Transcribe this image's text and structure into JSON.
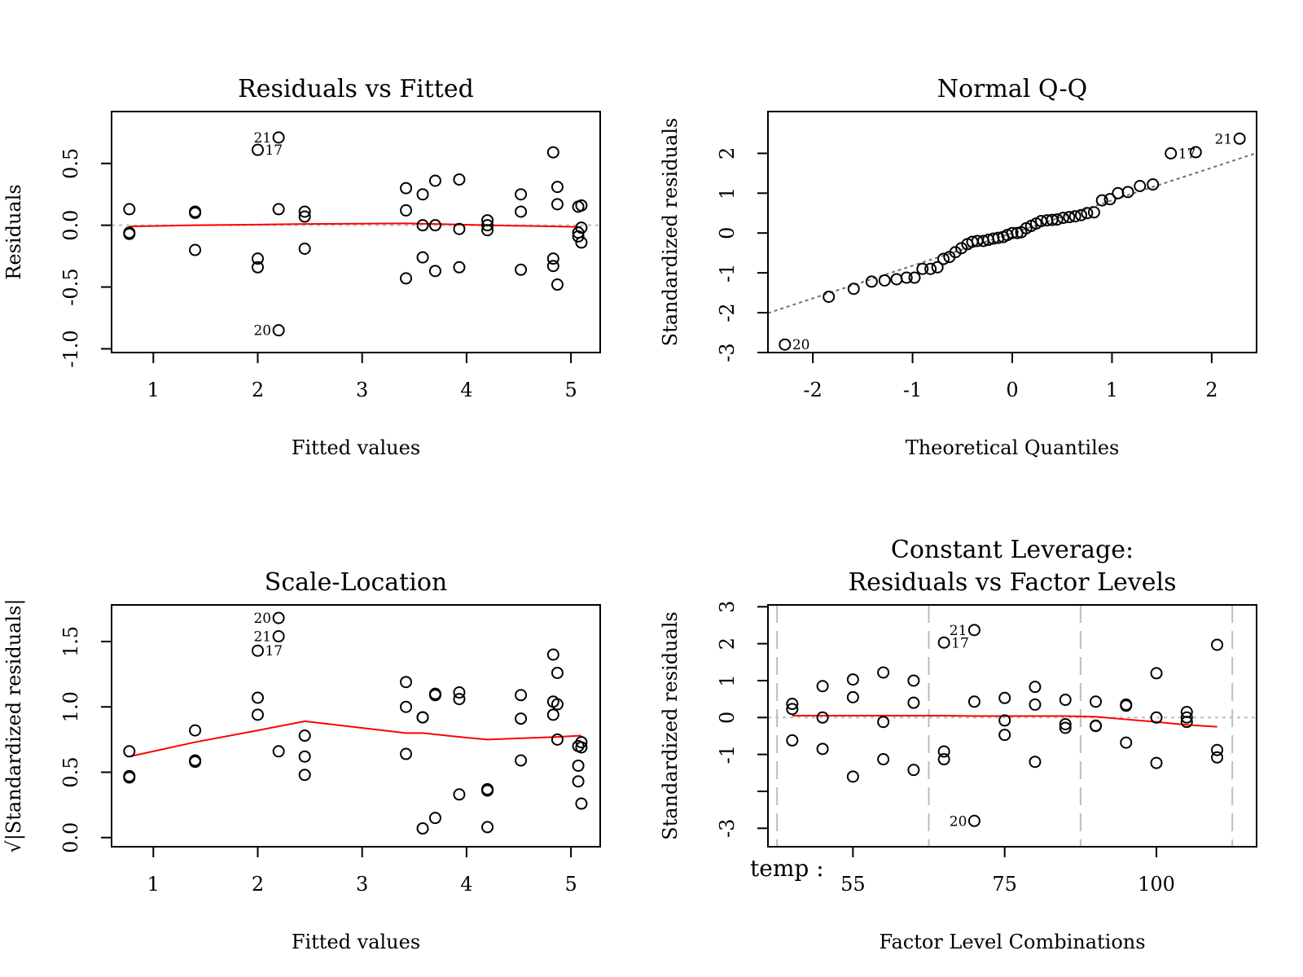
{
  "chart_data": [
    {
      "type": "scatter",
      "title": "Residuals vs Fitted",
      "xlabel": "Fitted values",
      "ylabel": "Residuals",
      "xlim": [
        0.6,
        5.28
      ],
      "ylim": [
        -1.03,
        0.92
      ],
      "xticks": [
        1,
        2,
        3,
        4,
        5
      ],
      "xtick_labels": [
        "1",
        "2",
        "3",
        "4",
        "5"
      ],
      "yticks": [
        -1.0,
        -0.5,
        0.0,
        0.5
      ],
      "ytick_labels": [
        "-1.0",
        "-0.5",
        "0.0",
        "0.5"
      ],
      "hline": 0,
      "points": {
        "x": [
          0.77,
          0.77,
          0.77,
          1.4,
          1.4,
          1.4,
          2.0,
          2.0,
          2.0,
          2.2,
          2.2,
          2.2,
          2.45,
          2.45,
          2.45,
          3.42,
          3.42,
          3.42,
          3.58,
          3.58,
          3.58,
          3.7,
          3.7,
          3.7,
          3.93,
          3.93,
          3.93,
          4.2,
          4.2,
          4.2,
          4.52,
          4.52,
          4.52,
          4.83,
          4.83,
          4.83,
          4.87,
          4.87,
          4.87,
          5.07,
          5.07,
          5.07,
          5.1,
          5.1,
          5.1
        ],
        "y": [
          0.13,
          -0.06,
          -0.07,
          0.1,
          0.11,
          -0.2,
          0.61,
          -0.27,
          -0.34,
          0.71,
          0.13,
          -0.85,
          0.11,
          0.07,
          -0.19,
          0.3,
          0.12,
          -0.43,
          0.25,
          0.0,
          -0.26,
          0.36,
          0.0,
          -0.37,
          0.37,
          -0.03,
          -0.34,
          0.04,
          0.0,
          -0.04,
          0.25,
          0.11,
          -0.36,
          0.59,
          -0.27,
          -0.33,
          0.31,
          0.17,
          -0.48,
          0.15,
          -0.06,
          -0.09,
          0.16,
          -0.02,
          -0.14
        ]
      },
      "smooth": {
        "x": [
          0.77,
          1.4,
          2.0,
          2.45,
          3.42,
          3.7,
          4.2,
          4.87,
          5.1
        ],
        "y": [
          -0.01,
          0.0,
          0.005,
          0.01,
          0.015,
          0.01,
          0.0,
          -0.01,
          -0.015
        ]
      },
      "labeled_points": [
        {
          "label": "21",
          "x": 2.2,
          "y": 0.71,
          "side": "left"
        },
        {
          "label": "17",
          "x": 2.0,
          "y": 0.61,
          "side": "right"
        },
        {
          "label": "20",
          "x": 2.2,
          "y": -0.85,
          "side": "left"
        }
      ]
    },
    {
      "type": "scatter",
      "title": "Normal Q-Q",
      "xlabel": "Theoretical Quantiles",
      "ylabel": "Standardized residuals",
      "xlim": [
        -2.45,
        2.45
      ],
      "ylim": [
        -3.0,
        3.05
      ],
      "xticks": [
        -2,
        -1,
        0,
        1,
        2
      ],
      "xtick_labels": [
        "-2",
        "-1",
        "0",
        "1",
        "2"
      ],
      "yticks": [
        -3,
        -2,
        -1,
        0,
        1,
        2
      ],
      "ytick_labels": [
        "-3",
        "-2",
        "-1",
        "0",
        "1",
        "2"
      ],
      "points": {
        "x": [
          -2.28,
          -1.84,
          -1.59,
          -1.41,
          -1.28,
          -1.16,
          -1.06,
          -0.98,
          -0.9,
          -0.82,
          -0.75,
          -0.69,
          -0.63,
          -0.57,
          -0.51,
          -0.45,
          -0.4,
          -0.35,
          -0.29,
          -0.24,
          -0.19,
          -0.14,
          -0.09,
          -0.05,
          0.0,
          0.05,
          0.09,
          0.14,
          0.19,
          0.24,
          0.29,
          0.35,
          0.4,
          0.45,
          0.51,
          0.57,
          0.63,
          0.69,
          0.75,
          0.82,
          0.9,
          0.98,
          1.06,
          1.16,
          1.28,
          1.41,
          1.59,
          1.84,
          2.28
        ],
        "y": [
          -2.8,
          -1.6,
          -1.4,
          -1.22,
          -1.19,
          -1.16,
          -1.12,
          -1.12,
          -0.9,
          -0.9,
          -0.86,
          -0.65,
          -0.6,
          -0.48,
          -0.38,
          -0.28,
          -0.22,
          -0.2,
          -0.2,
          -0.17,
          -0.14,
          -0.12,
          -0.1,
          -0.05,
          0.0,
          0.0,
          0.02,
          0.12,
          0.18,
          0.24,
          0.3,
          0.32,
          0.33,
          0.34,
          0.38,
          0.4,
          0.42,
          0.45,
          0.5,
          0.52,
          0.82,
          0.85,
          1.0,
          1.03,
          1.18,
          1.22,
          2.0,
          2.03,
          2.37
        ]
      },
      "reference_line": {
        "intercept": 0.0,
        "slope": 0.82
      },
      "labeled_points": [
        {
          "label": "21",
          "x": 2.28,
          "y": 2.37,
          "side": "left"
        },
        {
          "label": "17",
          "x": 1.59,
          "y": 2.0,
          "side": "right"
        },
        {
          "label": "20",
          "x": -2.28,
          "y": -2.8,
          "side": "right"
        }
      ]
    },
    {
      "type": "scatter",
      "title": "Scale-Location",
      "xlabel": "Fitted values",
      "ylabel": "√|Standardized residuals|",
      "xlim": [
        0.6,
        5.28
      ],
      "ylim": [
        -0.07,
        1.78
      ],
      "xticks": [
        1,
        2,
        3,
        4,
        5
      ],
      "xtick_labels": [
        "1",
        "2",
        "3",
        "4",
        "5"
      ],
      "yticks": [
        0.0,
        0.5,
        1.0,
        1.5
      ],
      "ytick_labels": [
        "0.0",
        "0.5",
        "1.0",
        "1.5"
      ],
      "points": {
        "x": [
          0.77,
          0.77,
          0.77,
          1.4,
          1.4,
          1.4,
          2.0,
          2.0,
          2.0,
          2.2,
          2.2,
          2.2,
          2.45,
          2.45,
          2.45,
          3.42,
          3.42,
          3.42,
          3.58,
          3.58,
          3.58,
          3.7,
          3.7,
          3.7,
          3.93,
          3.93,
          3.93,
          4.2,
          4.2,
          4.2,
          4.52,
          4.52,
          4.52,
          4.83,
          4.83,
          4.83,
          4.87,
          4.87,
          4.87,
          5.07,
          5.07,
          5.07,
          5.1,
          5.1,
          5.1
        ],
        "y": [
          0.66,
          0.46,
          0.47,
          0.59,
          0.58,
          0.82,
          1.43,
          1.07,
          0.94,
          1.54,
          0.66,
          1.68,
          0.62,
          0.48,
          0.78,
          1.19,
          1.0,
          0.64,
          0.92,
          0.92,
          0.07,
          1.1,
          1.09,
          0.15,
          1.11,
          1.06,
          0.33,
          0.37,
          0.36,
          0.08,
          1.09,
          0.91,
          0.59,
          1.4,
          1.04,
          0.94,
          1.26,
          1.02,
          0.75,
          0.7,
          0.55,
          0.43,
          0.73,
          0.69,
          0.26
        ]
      },
      "smooth": {
        "x": [
          0.77,
          1.4,
          2.0,
          2.45,
          3.42,
          3.58,
          3.93,
          4.2,
          4.52,
          4.87,
          5.1
        ],
        "y": [
          0.62,
          0.73,
          0.82,
          0.89,
          0.8,
          0.8,
          0.77,
          0.75,
          0.76,
          0.77,
          0.78
        ]
      },
      "labeled_points": [
        {
          "label": "20",
          "x": 2.2,
          "y": 1.68,
          "side": "left"
        },
        {
          "label": "21",
          "x": 2.2,
          "y": 1.54,
          "side": "left"
        },
        {
          "label": "17",
          "x": 2.0,
          "y": 1.43,
          "side": "right"
        }
      ]
    },
    {
      "type": "scatter",
      "title": "Constant Leverage:",
      "title_line2": "Residuals vs Factor Levels",
      "xlabel": "Factor Level Combinations",
      "ylabel": "Standardized residuals",
      "factor_name": "temp :",
      "xlim": [
        0.2,
        16.3
      ],
      "ylim": [
        -3.5,
        3.05
      ],
      "xticks": [
        3,
        8,
        13
      ],
      "xtick_labels": [
        "55",
        "75",
        "100"
      ],
      "yticks": [
        -3,
        -2,
        -1,
        0,
        1,
        2,
        3
      ],
      "ytick_labels": [
        "-3",
        "",
        "-1",
        "0",
        "1",
        "2",
        "3"
      ],
      "factor_boundaries": [
        0.5,
        5.5,
        10.5,
        15.5
      ],
      "hline": 0,
      "points": {
        "x": [
          1,
          1,
          1,
          2,
          2,
          2,
          3,
          3,
          3,
          4,
          4,
          4,
          5,
          5,
          5,
          6,
          6,
          6,
          7,
          7,
          7,
          8,
          8,
          8,
          9,
          9,
          9,
          10,
          10,
          10,
          11,
          11,
          11,
          12,
          12,
          12,
          13,
          13,
          13,
          14,
          14,
          14,
          15,
          15,
          15
        ],
        "y": [
          0.37,
          0.23,
          -0.62,
          0.85,
          0.0,
          -0.85,
          1.03,
          0.55,
          -1.6,
          1.22,
          -0.12,
          -1.13,
          1.0,
          0.4,
          -1.42,
          2.03,
          -0.92,
          -1.13,
          2.37,
          0.43,
          -2.8,
          0.53,
          -0.08,
          -0.47,
          0.83,
          0.35,
          -1.2,
          0.48,
          -0.18,
          -0.28,
          0.43,
          -0.22,
          -0.23,
          0.35,
          0.32,
          -0.68,
          1.2,
          0.0,
          -1.23,
          0.15,
          0.0,
          -0.12,
          1.97,
          -0.88,
          -1.08
        ]
      },
      "smooth": {
        "x": [
          1,
          2,
          3,
          4,
          5,
          6,
          7,
          8,
          9,
          10,
          11,
          12,
          13,
          14,
          15
        ],
        "y": [
          0.05,
          0.05,
          0.05,
          0.05,
          0.05,
          0.05,
          0.04,
          0.04,
          0.04,
          0.04,
          0.02,
          -0.05,
          -0.12,
          -0.2,
          -0.25
        ]
      },
      "labeled_points": [
        {
          "label": "21",
          "x": 7,
          "y": 2.37,
          "side": "left"
        },
        {
          "label": "17",
          "x": 6,
          "y": 2.03,
          "side": "right"
        },
        {
          "label": "20",
          "x": 7,
          "y": -2.8,
          "side": "left"
        }
      ]
    }
  ]
}
